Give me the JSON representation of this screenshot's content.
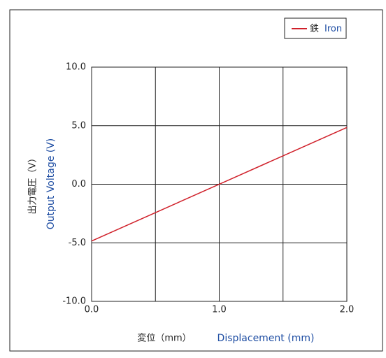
{
  "chart_data": {
    "type": "line",
    "xlabel_ja": "変位（mm）",
    "xlabel_en": "Displacement (mm)",
    "ylabel_ja": "出力電圧（V）",
    "ylabel_en": "Output Voltage (V)",
    "x": [
      0,
      2
    ],
    "series": [
      {
        "name": "鉄 Iron",
        "color": "#d0202a",
        "values": [
          -4.85,
          4.85
        ]
      }
    ],
    "xlim": [
      0,
      2
    ],
    "xticks": [
      {
        "value": 0,
        "label": "0.0"
      },
      {
        "value": 0.5,
        "label": ""
      },
      {
        "value": 1,
        "label": "1.0"
      },
      {
        "value": 1.5,
        "label": ""
      },
      {
        "value": 2,
        "label": "2.0"
      }
    ],
    "ylim": [
      -10,
      10
    ],
    "yticks": [
      {
        "value": -10,
        "label": "-10.0"
      },
      {
        "value": -5,
        "label": "-5.0"
      },
      {
        "value": 0,
        "label": "0.0"
      },
      {
        "value": 5,
        "label": "5.0"
      },
      {
        "value": 10,
        "label": "10.0"
      }
    ],
    "grid": true,
    "legend": "top-right"
  }
}
